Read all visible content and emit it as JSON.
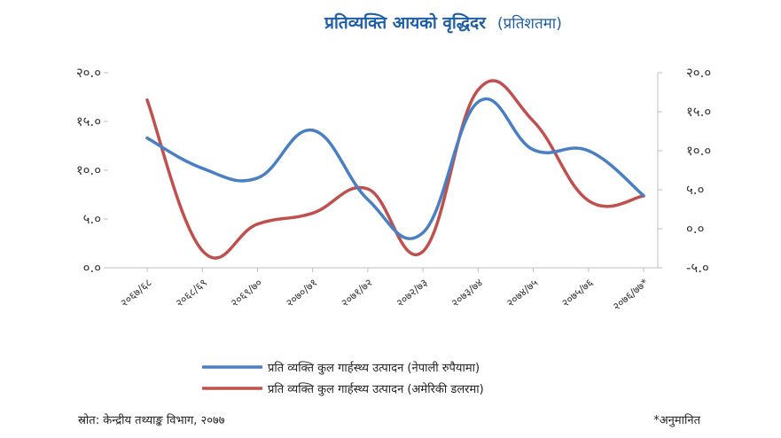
{
  "colors": {
    "title": "#1f5fa8",
    "series_blue": "#4a7fc1",
    "series_red": "#c0504d",
    "axis": "#bfbfbf",
    "text": "#333333"
  },
  "chart_data": {
    "type": "line",
    "title": "प्रतिव्यक्ति आयको वृद्धिदर",
    "subtitle": "(प्रतिशतमा)",
    "categories": [
      "२०६७/६८",
      "२०६८/६९",
      "२०६९/७०",
      "२०७०/७१",
      "२०७१/७२",
      "२०७२/७३",
      "२०७३/७४",
      "२०७४/७५",
      "२०७५/७६",
      "२०७६/७७*"
    ],
    "left_axis": {
      "ylim": [
        0,
        20
      ],
      "ticks": [
        0,
        5,
        10,
        15,
        20
      ],
      "tick_labels": [
        "०.०",
        "५.०",
        "१०.०",
        "१५.०",
        "२०.०"
      ]
    },
    "right_axis": {
      "ylim": [
        -5,
        20
      ],
      "ticks": [
        -5,
        0,
        5,
        10,
        15,
        20
      ],
      "tick_labels": [
        "-५.०",
        "०.०",
        "५.०",
        "१०.०",
        "१५.०",
        "२०.०"
      ]
    },
    "series": [
      {
        "name": "प्रति व्यक्ति कुल गार्हस्थ्य उत्पादन (नेपाली रुपैयामा)",
        "axis": "left",
        "color": "#4a7fc1",
        "values": [
          13.3,
          10.2,
          9.2,
          14.1,
          7.0,
          3.6,
          17.0,
          12.1,
          12.0,
          7.4
        ]
      },
      {
        "name": "प्रति व्यक्ति कुल गार्हस्थ्य उत्पादन (अमेरिकी डलरमा)",
        "axis": "right",
        "color": "#c0504d",
        "values": [
          16.5,
          -2.8,
          0.6,
          2.0,
          5.1,
          -2.9,
          17.8,
          13.8,
          3.6,
          4.2
        ]
      }
    ],
    "grid": false,
    "legend_position": "bottom-center"
  },
  "footer": {
    "source": "स्रोत: केन्द्रीय तथ्याङ्क विभाग, २०७७",
    "note": "*अनुमानित"
  }
}
